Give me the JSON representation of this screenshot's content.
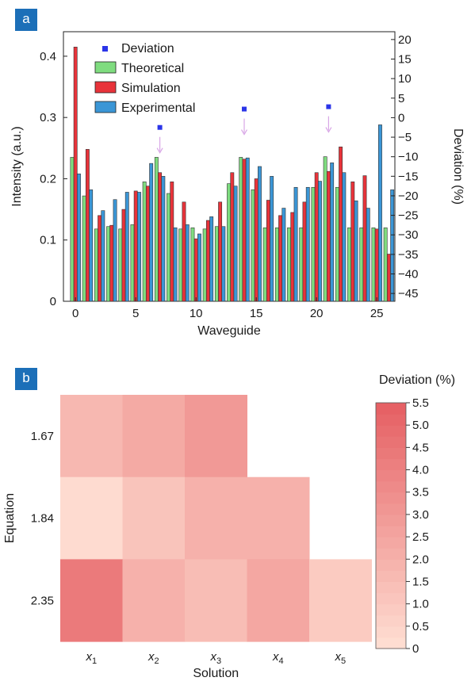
{
  "panels": {
    "a": "a",
    "b": "b"
  },
  "chart_data": [
    {
      "type": "bar",
      "xlabel": "Waveguide",
      "ylabel": "Intensity (a.u.)",
      "y2label": "Deviation (%)",
      "xlim": [
        -1,
        26.5
      ],
      "ylim": [
        0,
        0.44
      ],
      "y2lim": [
        -47,
        22
      ],
      "xticks": [
        0,
        5,
        10,
        15,
        20,
        25
      ],
      "yticks": [
        0,
        0.1,
        0.2,
        0.3,
        0.4
      ],
      "y2ticks": [
        20,
        15,
        10,
        5,
        0,
        -5,
        -10,
        -15,
        -20,
        -25,
        -30,
        -35,
        -40,
        -45
      ],
      "categories": [
        0,
        1,
        2,
        3,
        4,
        5,
        6,
        7,
        8,
        9,
        10,
        11,
        12,
        13,
        14,
        15,
        16,
        17,
        18,
        19,
        20,
        21,
        22,
        23,
        24,
        25,
        26
      ],
      "series": [
        {
          "name": "Theoretical",
          "color": "#7fdc7f",
          "values": [
            0.235,
            0.172,
            0.118,
            0.122,
            0.118,
            0.125,
            0.195,
            0.235,
            0.176,
            0.118,
            0.12,
            0.118,
            0.122,
            0.192,
            0.235,
            0.182,
            0.12,
            0.12,
            0.12,
            0.12,
            0.186,
            0.236,
            0.186,
            0.12,
            0.12,
            0.12,
            0.12
          ]
        },
        {
          "name": "Simulation",
          "color": "#e8333a",
          "values": [
            0.415,
            0.248,
            0.14,
            0.124,
            0.15,
            0.18,
            0.188,
            0.21,
            0.195,
            0.162,
            0.102,
            0.132,
            0.162,
            0.21,
            0.232,
            0.2,
            0.165,
            0.14,
            0.145,
            0.162,
            0.21,
            0.212,
            0.252,
            0.195,
            0.205,
            0.118,
            0.077
          ]
        },
        {
          "name": "Experimental",
          "color": "#3b96d6",
          "values": [
            0.208,
            0.182,
            0.148,
            0.166,
            0.178,
            0.178,
            0.225,
            0.204,
            0.12,
            0.125,
            0.11,
            0.138,
            0.122,
            0.188,
            0.234,
            0.22,
            0.204,
            0.152,
            0.186,
            0.186,
            0.196,
            0.226,
            0.21,
            0.164,
            0.152,
            0.288,
            0.182
          ]
        }
      ],
      "deviation": {
        "name": "Deviation",
        "color": "#2b35e8",
        "x": [
          7,
          14,
          21
        ],
        "y": [
          -2.5,
          2.2,
          2.8
        ]
      },
      "legend_position": "top-left"
    },
    {
      "type": "heatmap",
      "xlabel": "Solution",
      "ylabel": "Equation",
      "colorbar_title": "Deviation (%)",
      "x_categories": [
        "x1",
        "x2",
        "x3",
        "x4",
        "x5"
      ],
      "x_labels": [
        {
          "base": "x",
          "sub": "1"
        },
        {
          "base": "x",
          "sub": "2"
        },
        {
          "base": "x",
          "sub": "3"
        },
        {
          "base": "x",
          "sub": "4"
        },
        {
          "base": "x",
          "sub": "5"
        }
      ],
      "y_categories": [
        "1.67",
        "1.84",
        "2.35"
      ],
      "values": [
        [
          1.7,
          2.3,
          3.0,
          null,
          null
        ],
        [
          0.2,
          1.2,
          2.0,
          2.0,
          null
        ],
        [
          4.3,
          2.0,
          1.5,
          2.4,
          0.9
        ]
      ],
      "colorbar_ticks": [
        "0",
        "0.5",
        "1.0",
        "1.5",
        "2.0",
        "2.5",
        "3.0",
        "3.5",
        "4.0",
        "4.5",
        "5.0",
        "5.5"
      ],
      "colorbar_range": [
        0,
        5.5
      ],
      "color_low": "#ffe0d4",
      "color_high": "#e55e62"
    }
  ]
}
